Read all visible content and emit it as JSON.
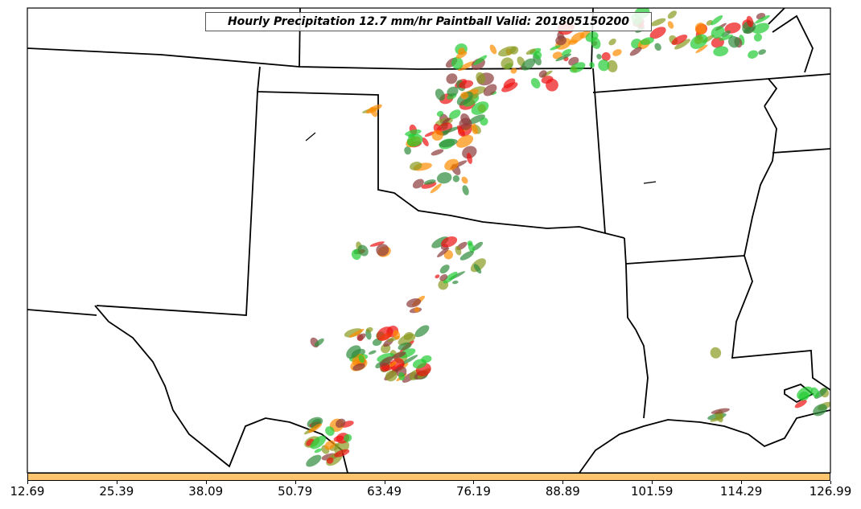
{
  "title": "Hourly Precipitation 12.7 mm/hr Paintball Valid: 201805150200",
  "colorbar": {
    "color": "#ffc56e",
    "tick_labels": [
      "12.69",
      "25.39",
      "38.09",
      "50.79",
      "63.49",
      "76.19",
      "88.89",
      "101.59",
      "114.29",
      "126.99"
    ]
  },
  "legend_colors": {
    "green": "#22cc33",
    "dark_green": "#2e8b3a",
    "olive": "#8a9a20",
    "orange": "#ff8c00",
    "red": "#ee1111",
    "brown": "#8b3a3a"
  }
}
